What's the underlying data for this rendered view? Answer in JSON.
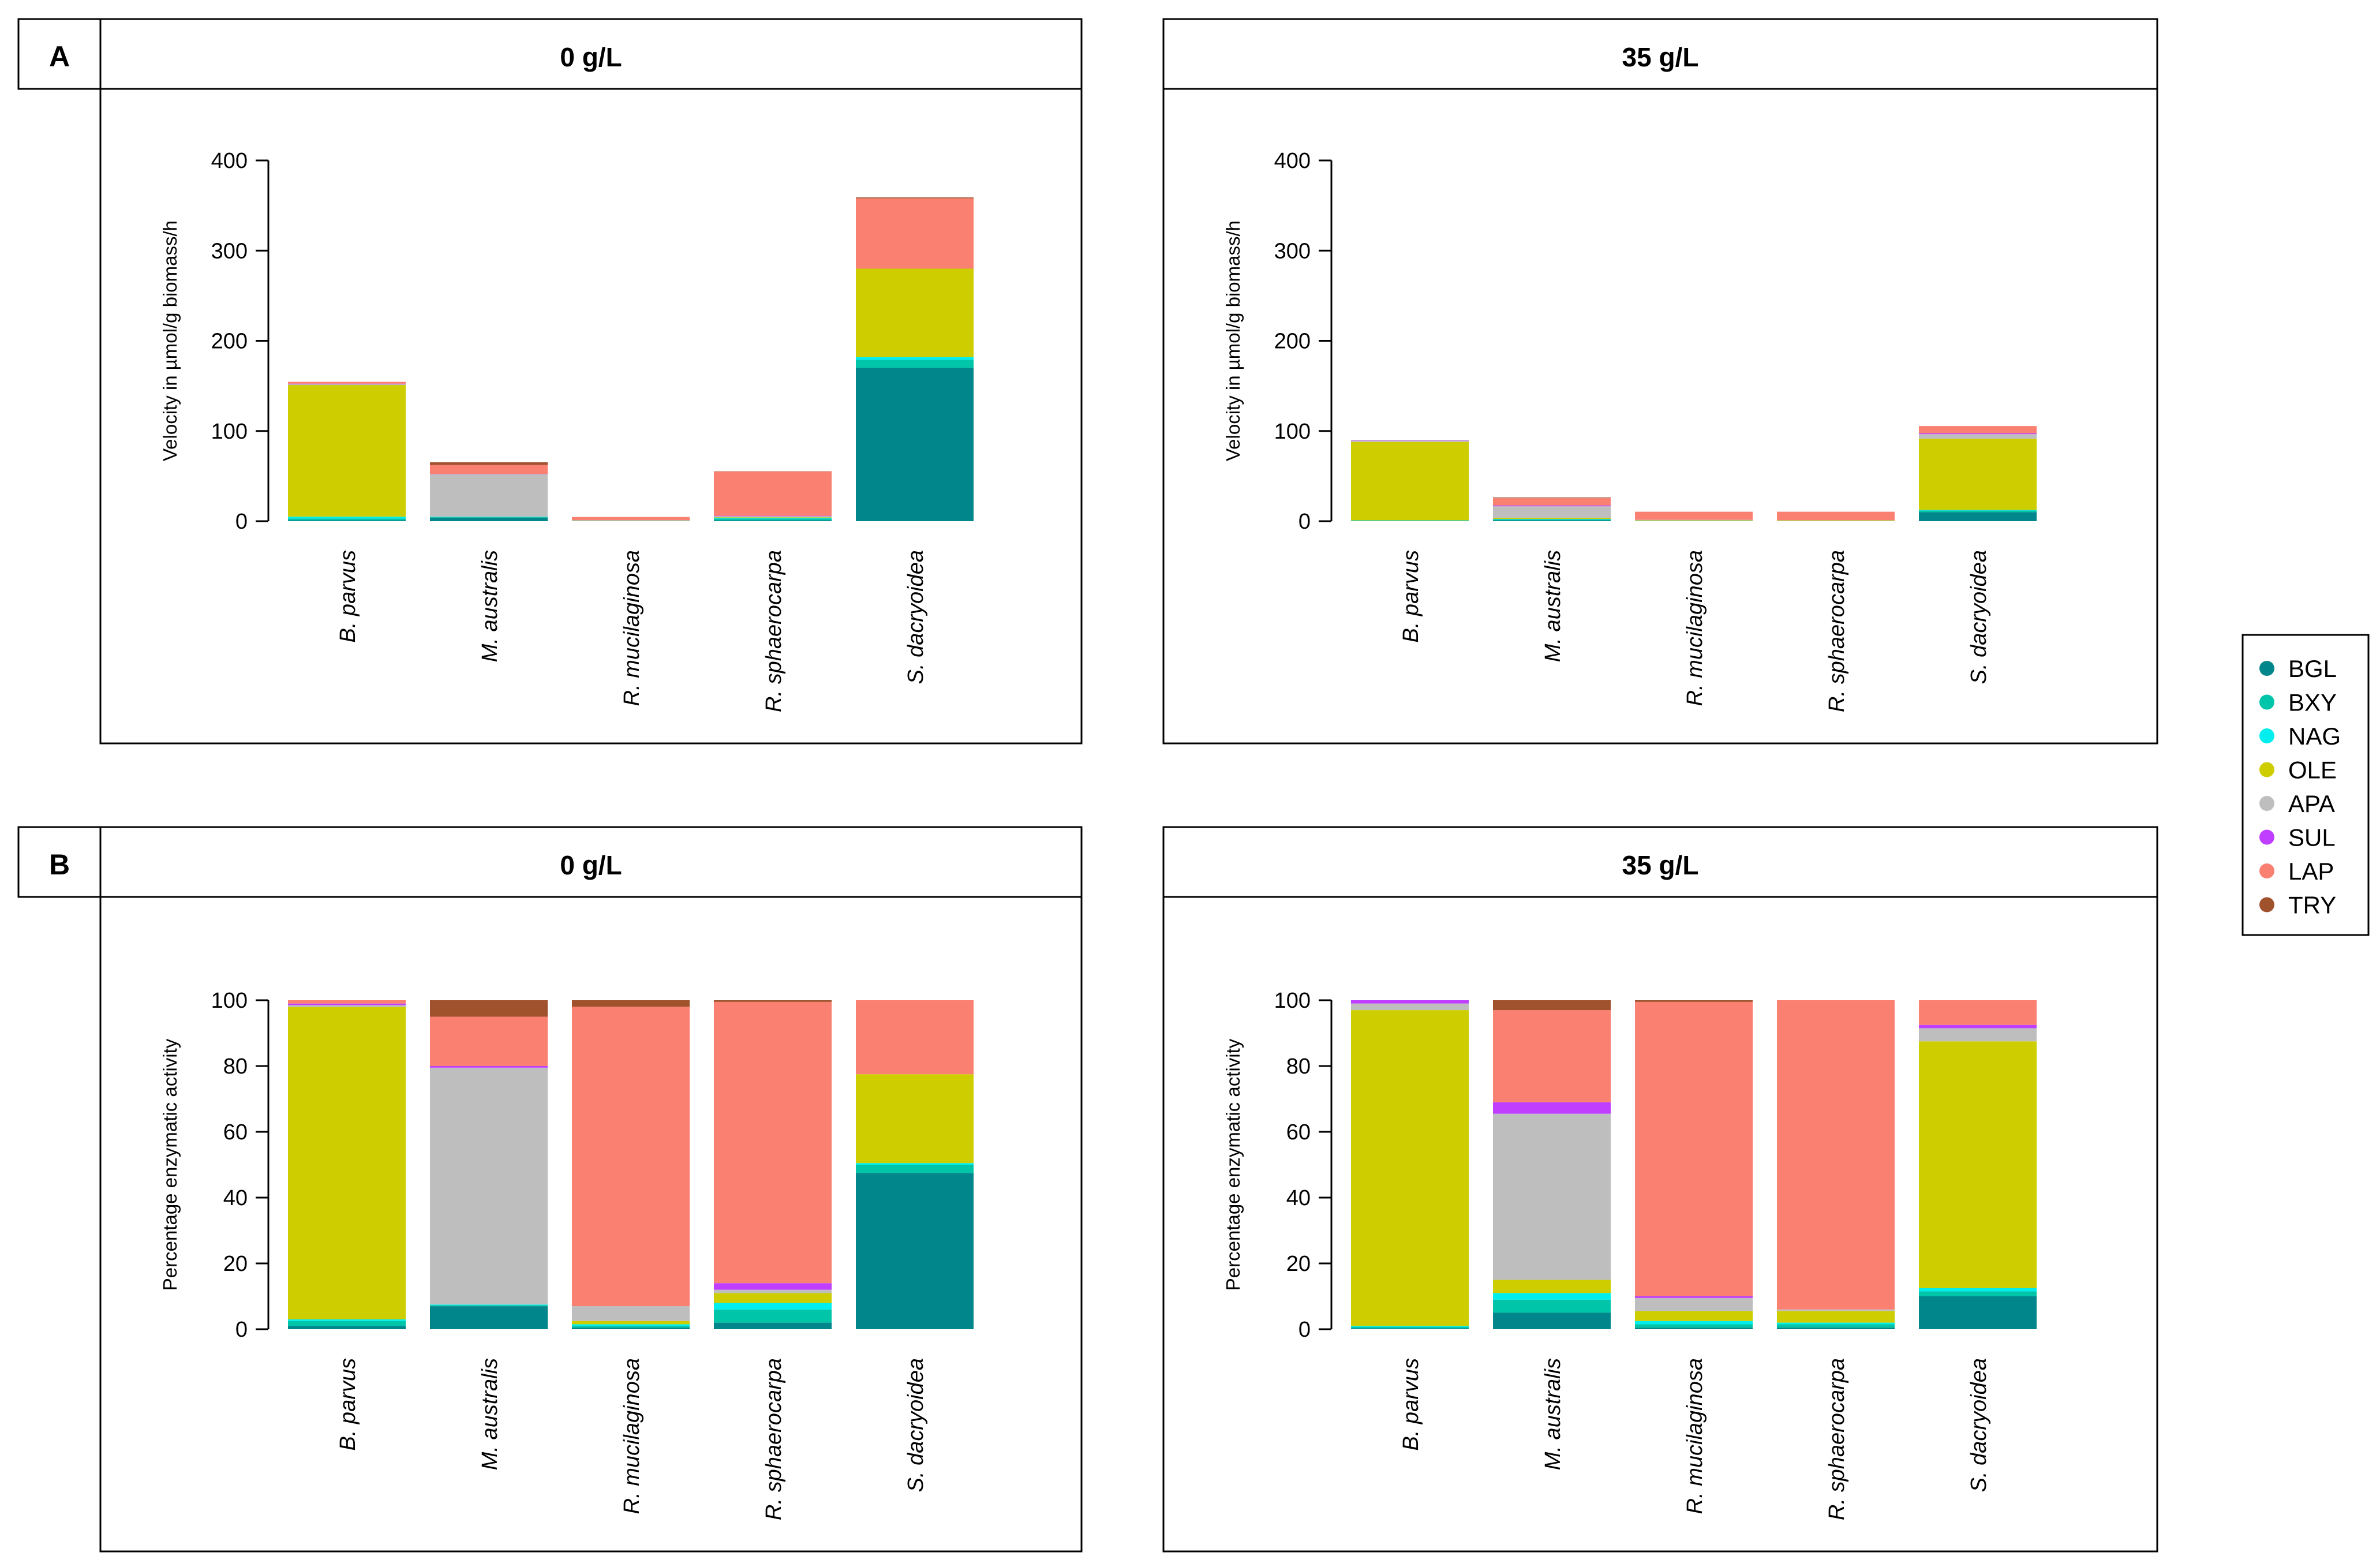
{
  "figure": {
    "panel_labels": [
      "A",
      "B"
    ]
  },
  "legend": {
    "items": [
      {
        "code": "BGL",
        "color": "#00868B"
      },
      {
        "code": "BXY",
        "color": "#00C5A8"
      },
      {
        "code": "NAG",
        "color": "#00EEEE"
      },
      {
        "code": "OLE",
        "color": "#CDCD00"
      },
      {
        "code": "APA",
        "color": "#BEBEBE"
      },
      {
        "code": "SUL",
        "color": "#BF3EFF"
      },
      {
        "code": "LAP",
        "color": "#FA8072"
      },
      {
        "code": "TRY",
        "color": "#A0522D"
      }
    ]
  },
  "chart_data": [
    {
      "type": "bar",
      "stacked": true,
      "panel": "A",
      "title": "0 g/L",
      "ylabel": "Velocity in µmol/g biomass/h",
      "ylim": [
        0,
        400
      ],
      "yticks": [
        0,
        100,
        200,
        300,
        400
      ],
      "categories": [
        "B. parvus",
        "M. australis",
        "R. mucilaginosa",
        "R. sphaerocarpa",
        "S. dacryoidea"
      ],
      "series": [
        {
          "name": "BGL",
          "values": [
            1,
            4,
            0.2,
            1,
            170
          ]
        },
        {
          "name": "BXY",
          "values": [
            2,
            0.5,
            0.3,
            2,
            9
          ]
        },
        {
          "name": "NAG",
          "values": [
            2,
            0.5,
            0.1,
            1,
            3
          ]
        },
        {
          "name": "OLE",
          "values": [
            146,
            0,
            0.2,
            0.5,
            98
          ]
        },
        {
          "name": "APA",
          "values": [
            1,
            47,
            0.2,
            1,
            0
          ]
        },
        {
          "name": "SUL",
          "values": [
            0.5,
            0.3,
            0,
            0.5,
            0
          ]
        },
        {
          "name": "LAP",
          "values": [
            2,
            10,
            3.5,
            49,
            78
          ]
        },
        {
          "name": "TRY",
          "values": [
            0,
            3,
            0.1,
            0.3,
            1
          ]
        }
      ]
    },
    {
      "type": "bar",
      "stacked": true,
      "panel": "A",
      "title": "35 g/L",
      "ylabel": "Velocity in µmol/g biomass/h",
      "ylim": [
        0,
        400
      ],
      "yticks": [
        0,
        100,
        200,
        300,
        400
      ],
      "categories": [
        "B. parvus",
        "M. australis",
        "R. mucilaginosa",
        "R. sphaerocarpa",
        "S. dacryoidea"
      ],
      "series": [
        {
          "name": "BGL",
          "values": [
            0.3,
            1,
            0.2,
            0.1,
            10
          ]
        },
        {
          "name": "BXY",
          "values": [
            0.3,
            1,
            0.2,
            0.1,
            2
          ]
        },
        {
          "name": "NAG",
          "values": [
            0.3,
            0.5,
            0.1,
            0.1,
            0.5
          ]
        },
        {
          "name": "OLE",
          "values": [
            87,
            1,
            0.5,
            0.6,
            79
          ]
        },
        {
          "name": "APA",
          "values": [
            1.5,
            13,
            0.5,
            0.1,
            5
          ]
        },
        {
          "name": "SUL",
          "values": [
            0.5,
            1,
            0,
            0,
            1
          ]
        },
        {
          "name": "LAP",
          "values": [
            0.1,
            8,
            9,
            9.5,
            8
          ]
        },
        {
          "name": "TRY",
          "values": [
            0,
            0.8,
            0,
            0,
            0
          ]
        }
      ]
    },
    {
      "type": "bar",
      "stacked": true,
      "panel": "B",
      "title": "0 g/L",
      "ylabel": "Percentage enzymatic activity",
      "ylim": [
        0,
        100
      ],
      "yticks": [
        0,
        20,
        40,
        60,
        80,
        100
      ],
      "categories": [
        "B. parvus",
        "M. australis",
        "R. mucilaginosa",
        "R. sphaerocarpa",
        "S. dacryoidea"
      ],
      "series": [
        {
          "name": "BGL",
          "values": [
            1,
            7,
            0.5,
            2,
            47.5
          ]
        },
        {
          "name": "BXY",
          "values": [
            1.5,
            0.3,
            0.5,
            4,
            2.5
          ]
        },
        {
          "name": "NAG",
          "values": [
            0.5,
            0.2,
            0.5,
            2,
            0.5
          ]
        },
        {
          "name": "OLE",
          "values": [
            95,
            0,
            1,
            3,
            27
          ]
        },
        {
          "name": "APA",
          "values": [
            0.5,
            72,
            4.5,
            1,
            0
          ]
        },
        {
          "name": "SUL",
          "values": [
            0.5,
            0.5,
            0,
            2,
            0
          ]
        },
        {
          "name": "LAP",
          "values": [
            1,
            15,
            91,
            85.5,
            22.5
          ]
        },
        {
          "name": "TRY",
          "values": [
            0,
            5,
            2,
            0.5,
            0
          ]
        }
      ]
    },
    {
      "type": "bar",
      "stacked": true,
      "panel": "B",
      "title": "35 g/L",
      "ylabel": "Percentage enzymatic activity",
      "ylim": [
        0,
        100
      ],
      "yticks": [
        0,
        20,
        40,
        60,
        80,
        100
      ],
      "categories": [
        "B. parvus",
        "M. australis",
        "R. mucilaginosa",
        "R. sphaerocarpa",
        "S. dacryoidea"
      ],
      "series": [
        {
          "name": "BGL",
          "values": [
            0.3,
            5,
            0.5,
            0.5,
            10
          ]
        },
        {
          "name": "BXY",
          "values": [
            0.4,
            4,
            1,
            1,
            1.5
          ]
        },
        {
          "name": "NAG",
          "values": [
            0.3,
            2,
            1,
            0.5,
            1
          ]
        },
        {
          "name": "OLE",
          "values": [
            96,
            4,
            3,
            3.5,
            75
          ]
        },
        {
          "name": "APA",
          "values": [
            2,
            50.5,
            4,
            0.5,
            4
          ]
        },
        {
          "name": "SUL",
          "values": [
            1,
            3.5,
            0.5,
            0,
            1
          ]
        },
        {
          "name": "LAP",
          "values": [
            0,
            28,
            89.5,
            94,
            7.5
          ]
        },
        {
          "name": "TRY",
          "values": [
            0,
            3,
            0.5,
            0,
            0
          ]
        }
      ]
    }
  ]
}
